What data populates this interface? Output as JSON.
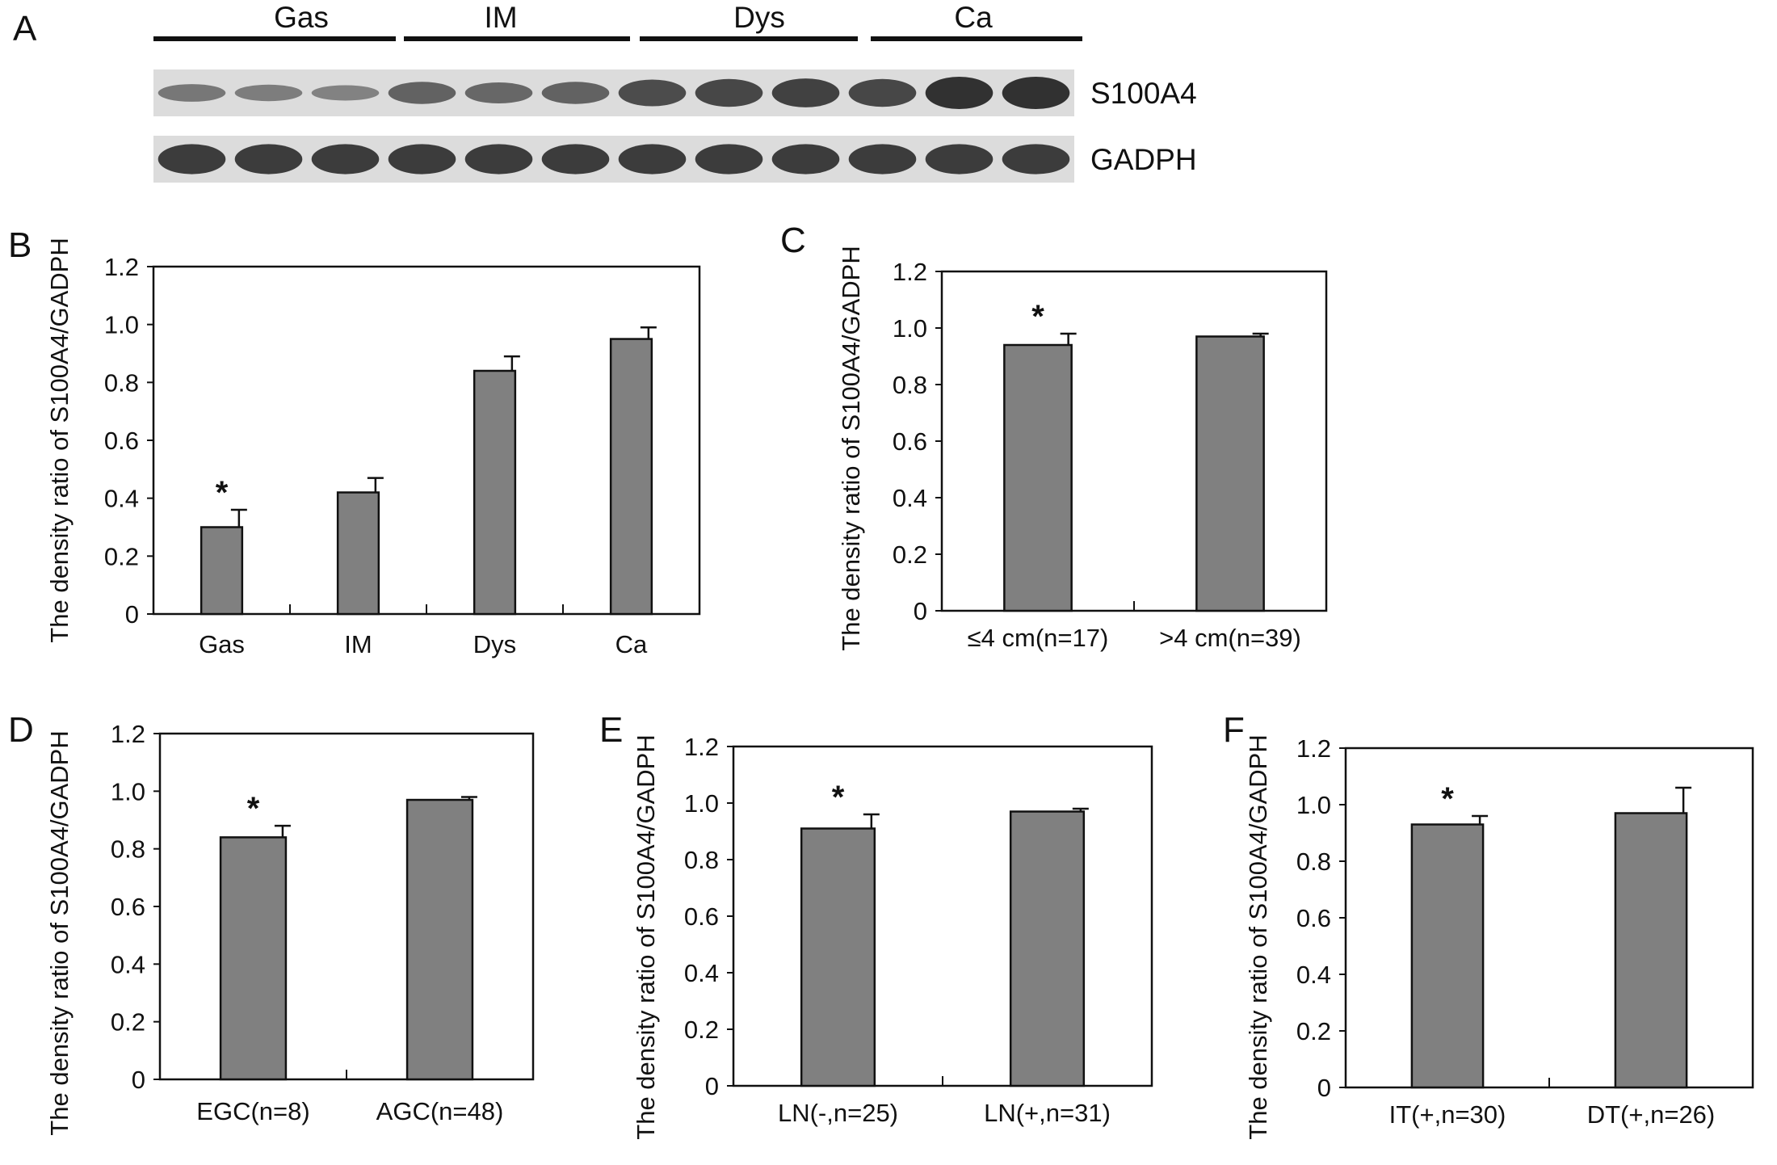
{
  "panel_letters": {
    "a": "A",
    "b": "B",
    "c": "C",
    "d": "D",
    "e": "E",
    "f": "F"
  },
  "blot": {
    "groups": [
      "Gas",
      "IM",
      "Dys",
      "Ca"
    ],
    "rows": [
      "S100A4",
      "GADPH"
    ],
    "s100a4_lane_intensity": [
      0.35,
      0.3,
      0.25,
      0.55,
      0.5,
      0.55,
      0.75,
      0.8,
      0.85,
      0.8,
      1.0,
      1.0
    ],
    "gadph_lane_intensity": [
      0.9,
      0.9,
      0.9,
      0.9,
      0.9,
      0.9,
      0.9,
      0.9,
      0.9,
      0.9,
      0.9,
      0.9
    ]
  },
  "chart_data": [
    {
      "id": "B",
      "type": "bar",
      "ylabel": "The density ratio of S100A4/GADPH",
      "ylim": [
        0,
        1.2
      ],
      "yticks": [
        "0",
        "0.2",
        "0.4",
        "0.6",
        "0.8",
        "1.0",
        "1.2"
      ],
      "categories": [
        "Gas",
        "IM",
        "Dys",
        "Ca"
      ],
      "values": [
        0.3,
        0.42,
        0.84,
        0.95
      ],
      "errors": [
        0.06,
        0.05,
        0.05,
        0.04
      ],
      "annotations": [
        {
          "category": "Gas",
          "text": "*"
        }
      ],
      "bar_color": "#808080"
    },
    {
      "id": "C",
      "type": "bar",
      "ylabel": "The density ratio of S100A4/GADPH",
      "ylim": [
        0,
        1.2
      ],
      "yticks": [
        "0",
        "0.2",
        "0.4",
        "0.6",
        "0.8",
        "1.0",
        "1.2"
      ],
      "categories": [
        "≤4 cm(n=17)",
        ">4 cm(n=39)"
      ],
      "values": [
        0.94,
        0.97
      ],
      "errors": [
        0.04,
        0.01
      ],
      "annotations": [
        {
          "category": "≤4 cm(n=17)",
          "text": "*"
        }
      ],
      "bar_color": "#808080"
    },
    {
      "id": "D",
      "type": "bar",
      "ylabel": "The density ratio of S100A4/GADPH",
      "ylim": [
        0,
        1.2
      ],
      "yticks": [
        "0",
        "0.2",
        "0.4",
        "0.6",
        "0.8",
        "1.0",
        "1.2"
      ],
      "categories": [
        "EGC(n=8)",
        "AGC(n=48)"
      ],
      "values": [
        0.84,
        0.97
      ],
      "errors": [
        0.04,
        0.01
      ],
      "annotations": [
        {
          "category": "EGC(n=8)",
          "text": "*"
        }
      ],
      "bar_color": "#808080"
    },
    {
      "id": "E",
      "type": "bar",
      "ylabel": "The density ratio of S100A4/GADPH",
      "ylim": [
        0,
        1.2
      ],
      "yticks": [
        "0",
        "0.2",
        "0.4",
        "0.6",
        "0.8",
        "1.0",
        "1.2"
      ],
      "categories": [
        "LN(-,n=25)",
        "LN(+,n=31)"
      ],
      "values": [
        0.91,
        0.97
      ],
      "errors": [
        0.05,
        0.01
      ],
      "annotations": [
        {
          "category": "LN(-,n=25)",
          "text": "*"
        }
      ],
      "bar_color": "#808080"
    },
    {
      "id": "F",
      "type": "bar",
      "ylabel": "The density ratio of S100A4/GADPH",
      "ylim": [
        0,
        1.2
      ],
      "yticks": [
        "0",
        "0.2",
        "0.4",
        "0.6",
        "0.8",
        "1.0",
        "1.2"
      ],
      "categories": [
        "IT(+,n=30)",
        "DT(+,n=26)"
      ],
      "values": [
        0.93,
        0.97
      ],
      "errors": [
        0.03,
        0.09
      ],
      "annotations": [
        {
          "category": "IT(+,n=30)",
          "text": "*"
        }
      ],
      "bar_color": "#808080"
    }
  ]
}
